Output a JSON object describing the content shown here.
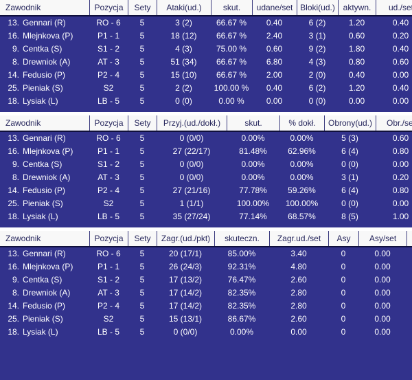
{
  "colors": {
    "body_bg": "#32328c",
    "body_text": "#ffffff",
    "header_bg": "#f8f8f8",
    "header_text": "#26265c",
    "separator": "#10103c",
    "divider": "#3a3a7e"
  },
  "tables": [
    {
      "id": "attack-block-stats",
      "columns": [
        "Zawodnik",
        "Pozycja",
        "Sety",
        "Ataki(ud.)",
        "skut.",
        "udane/set",
        "Bloki(ud.)",
        "aktywn.",
        "ud./set"
      ],
      "rows": [
        {
          "num": "13.",
          "name": "Gennari (R)",
          "cells": [
            "RO - 6",
            "5",
            "3 (2)",
            "66.67 %",
            "0.40",
            "6 (2)",
            "1.20",
            "0.40"
          ]
        },
        {
          "num": "16.",
          "name": "Mlejnkova (P)",
          "cells": [
            "P1 - 1",
            "5",
            "18 (12)",
            "66.67 %",
            "2.40",
            "3 (1)",
            "0.60",
            "0.20"
          ]
        },
        {
          "num": "9.",
          "name": "Centka (S)",
          "cells": [
            "S1 - 2",
            "5",
            "4 (3)",
            "75.00 %",
            "0.60",
            "9 (2)",
            "1.80",
            "0.40"
          ]
        },
        {
          "num": "8.",
          "name": "Drewniok (A)",
          "cells": [
            "AT - 3",
            "5",
            "51 (34)",
            "66.67 %",
            "6.80",
            "4 (3)",
            "0.80",
            "0.60"
          ]
        },
        {
          "num": "14.",
          "name": "Fedusio (P)",
          "cells": [
            "P2 - 4",
            "5",
            "15 (10)",
            "66.67 %",
            "2.00",
            "2 (0)",
            "0.40",
            "0.00"
          ]
        },
        {
          "num": "25.",
          "name": "Pieniak (S)",
          "cells": [
            "S2",
            "5",
            "2 (2)",
            "100.00 %",
            "0.40",
            "6 (2)",
            "1.20",
            "0.40"
          ]
        },
        {
          "num": "18.",
          "name": "Lysiak (L)",
          "cells": [
            "LB - 5",
            "5",
            "0 (0)",
            "0.00 %",
            "0.00",
            "0 (0)",
            "0.00",
            "0.00"
          ]
        }
      ]
    },
    {
      "id": "reception-defense-stats",
      "columns": [
        "Zawodnik",
        "Pozycja",
        "Sety",
        "Przyj.(ud./dokł.)",
        "skut.",
        "% dokł.",
        "Obrony(ud.)",
        "Obr./set"
      ],
      "rows": [
        {
          "num": "13.",
          "name": "Gennari (R)",
          "cells": [
            "RO - 6",
            "5",
            "0 (0/0)",
            "0.00%",
            "0.00%",
            "5 (3)",
            "0.60"
          ]
        },
        {
          "num": "16.",
          "name": "Mlejnkova (P)",
          "cells": [
            "P1 - 1",
            "5",
            "27 (22/17)",
            "81.48%",
            "62.96%",
            "6 (4)",
            "0.80"
          ]
        },
        {
          "num": "9.",
          "name": "Centka (S)",
          "cells": [
            "S1 - 2",
            "5",
            "0 (0/0)",
            "0.00%",
            "0.00%",
            "0 (0)",
            "0.00"
          ]
        },
        {
          "num": "8.",
          "name": "Drewniok (A)",
          "cells": [
            "AT - 3",
            "5",
            "0 (0/0)",
            "0.00%",
            "0.00%",
            "3 (1)",
            "0.20"
          ]
        },
        {
          "num": "14.",
          "name": "Fedusio (P)",
          "cells": [
            "P2 - 4",
            "5",
            "27 (21/16)",
            "77.78%",
            "59.26%",
            "6 (4)",
            "0.80"
          ]
        },
        {
          "num": "25.",
          "name": "Pieniak (S)",
          "cells": [
            "S2",
            "5",
            "1 (1/1)",
            "100.00%",
            "100.00%",
            "0 (0)",
            "0.00"
          ]
        },
        {
          "num": "18.",
          "name": "Lysiak (L)",
          "cells": [
            "LB - 5",
            "5",
            "35 (27/24)",
            "77.14%",
            "68.57%",
            "8 (5)",
            "1.00"
          ]
        }
      ]
    },
    {
      "id": "serve-stats",
      "columns": [
        "Zawodnik",
        "Pozycja",
        "Sety",
        "Zagr.(ud./pkt)",
        "skuteczn.",
        "Zagr.ud./set",
        "Asy",
        "Asy/set",
        ""
      ],
      "rows": [
        {
          "num": "13.",
          "name": "Gennari (R)",
          "cells": [
            "RO - 6",
            "5",
            "20 (17/1)",
            "85.00%",
            "3.40",
            "0",
            "0.00",
            ""
          ]
        },
        {
          "num": "16.",
          "name": "Mlejnkova (P)",
          "cells": [
            "P1 - 1",
            "5",
            "26 (24/3)",
            "92.31%",
            "4.80",
            "0",
            "0.00",
            ""
          ]
        },
        {
          "num": "9.",
          "name": "Centka (S)",
          "cells": [
            "S1 - 2",
            "5",
            "17 (13/2)",
            "76.47%",
            "2.60",
            "0",
            "0.00",
            ""
          ]
        },
        {
          "num": "8.",
          "name": "Drewniok (A)",
          "cells": [
            "AT - 3",
            "5",
            "17 (14/2)",
            "82.35%",
            "2.80",
            "0",
            "0.00",
            ""
          ]
        },
        {
          "num": "14.",
          "name": "Fedusio (P)",
          "cells": [
            "P2 - 4",
            "5",
            "17 (14/2)",
            "82.35%",
            "2.80",
            "0",
            "0.00",
            ""
          ]
        },
        {
          "num": "25.",
          "name": "Pieniak (S)",
          "cells": [
            "S2",
            "5",
            "15 (13/1)",
            "86.67%",
            "2.60",
            "0",
            "0.00",
            ""
          ]
        },
        {
          "num": "18.",
          "name": "Lysiak (L)",
          "cells": [
            "LB - 5",
            "5",
            "0 (0/0)",
            "0.00%",
            "0.00",
            "0",
            "0.00",
            ""
          ]
        }
      ]
    }
  ]
}
